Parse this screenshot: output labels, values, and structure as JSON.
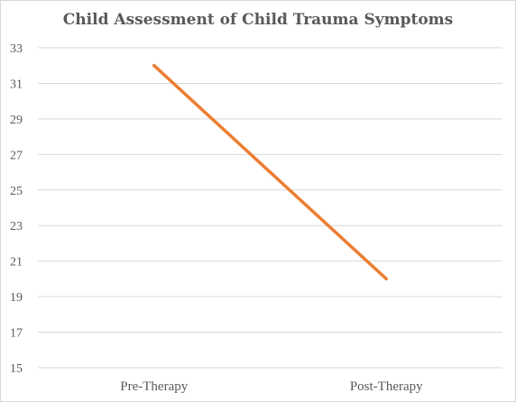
{
  "chart_data": {
    "type": "line",
    "title": "Child Assessment of Child Trauma Symptoms",
    "categories": [
      "Pre-Therapy",
      "Post-Therapy"
    ],
    "series": [
      {
        "values": [
          32,
          20
        ],
        "color": "#ED7D31"
      }
    ],
    "ylim": [
      15,
      33
    ],
    "yticks": [
      "33",
      "31",
      "29",
      "27",
      "25",
      "23",
      "21",
      "19",
      "17",
      "15"
    ],
    "ytick_values": [
      33,
      31,
      29,
      27,
      25,
      23,
      21,
      19,
      17,
      15
    ],
    "grid": true,
    "gridline_color": "#d9d9d9",
    "text_color": "#595959"
  }
}
